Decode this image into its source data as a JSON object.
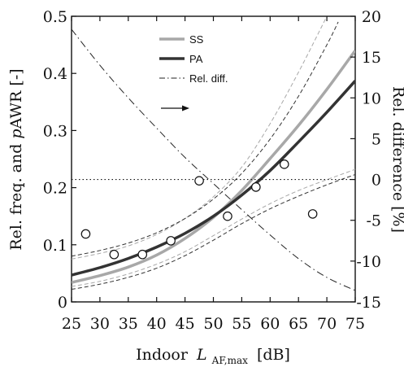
{
  "chart_data": {
    "type": "line",
    "xlabel": "Indoor",
    "xlabel_symbol": "L",
    "xlabel_subscript": "AF,max",
    "xlabel_unit": "[dB]",
    "ylabel_left": "Rel. freq. and pAWR [-]",
    "ylabel_left_parts": [
      "Rel. freq. and ",
      "p",
      "AWR [-]"
    ],
    "ylabel_right": "Rel. difference [%]",
    "xlim": [
      25,
      75
    ],
    "ylim_left": [
      0,
      0.5
    ],
    "ylim_right": [
      -15,
      20
    ],
    "x_ticks": [
      "25",
      "30",
      "35",
      "40",
      "45",
      "50",
      "55",
      "60",
      "65",
      "70",
      "75"
    ],
    "y_ticks_left": [
      "0",
      "0.1",
      "0.2",
      "0.3",
      "0.4",
      "0.5"
    ],
    "y_ticks_right": [
      "-15",
      "-10",
      "-5",
      "0",
      "5",
      "10",
      "15",
      "20"
    ],
    "legend": {
      "placement": "top-center",
      "entries": [
        "SS",
        "PA",
        "Rel. diff."
      ]
    },
    "series": [
      {
        "name": "SS",
        "axis": "left",
        "color": "#a8a8a8",
        "x": [
          25,
          30,
          35,
          40,
          45,
          50,
          55,
          60,
          65,
          70,
          75
        ],
        "values": [
          0.034,
          0.046,
          0.061,
          0.082,
          0.111,
          0.148,
          0.195,
          0.251,
          0.309,
          0.372,
          0.44
        ]
      },
      {
        "name": "SS 95% band (lower)",
        "axis": "left",
        "color": "#a8a8a8",
        "style": "dashed",
        "x": [
          25,
          30,
          35,
          40,
          45,
          50,
          55,
          60,
          65,
          70,
          75
        ],
        "values": [
          0.027,
          0.036,
          0.049,
          0.066,
          0.088,
          0.116,
          0.145,
          0.172,
          0.195,
          0.214,
          0.232
        ]
      },
      {
        "name": "SS 95% band (upper)",
        "axis": "left",
        "color": "#a8a8a8",
        "style": "dashed",
        "x": [
          25,
          30,
          35,
          40,
          45,
          50,
          55,
          60,
          65,
          70
        ],
        "values": [
          0.075,
          0.085,
          0.098,
          0.118,
          0.146,
          0.184,
          0.236,
          0.312,
          0.402,
          0.5
        ]
      },
      {
        "name": "PA",
        "axis": "left",
        "color": "#333333",
        "x": [
          25,
          30,
          35,
          40,
          45,
          50,
          55,
          60,
          65,
          70,
          75
        ],
        "values": [
          0.047,
          0.06,
          0.076,
          0.096,
          0.12,
          0.15,
          0.187,
          0.23,
          0.28,
          0.332,
          0.387
        ]
      },
      {
        "name": "PA 95% band (lower)",
        "axis": "left",
        "color": "#333333",
        "style": "dashed",
        "x": [
          25,
          30,
          35,
          40,
          45,
          50,
          55,
          60,
          65,
          70,
          75
        ],
        "values": [
          0.022,
          0.031,
          0.043,
          0.059,
          0.081,
          0.108,
          0.137,
          0.163,
          0.185,
          0.205,
          0.223
        ]
      },
      {
        "name": "PA 95% band (upper)",
        "axis": "left",
        "color": "#333333",
        "style": "dashed",
        "x": [
          25,
          30,
          35,
          40,
          45,
          50,
          55,
          60,
          65,
          70,
          72
        ],
        "values": [
          0.08,
          0.09,
          0.103,
          0.121,
          0.146,
          0.18,
          0.225,
          0.285,
          0.36,
          0.45,
          0.49
        ]
      },
      {
        "name": "Rel. diff.",
        "axis": "right",
        "color": "#222222",
        "style": "dashdot",
        "x": [
          25,
          30,
          35,
          40,
          45,
          50,
          55,
          60,
          65,
          70,
          75
        ],
        "values": [
          18.4,
          14.0,
          10.0,
          6.3,
          2.7,
          -0.5,
          -3.7,
          -6.8,
          -9.7,
          -12.0,
          -13.6
        ]
      }
    ],
    "points": {
      "marker": "open-circle",
      "x": [
        27.5,
        32.5,
        37.5,
        42.5,
        47.5,
        52.5,
        57.5,
        62.5,
        67.5
      ],
      "y": [
        0.119,
        0.083,
        0.083,
        0.107,
        0.212,
        0.15,
        0.201,
        0.241,
        0.154
      ]
    },
    "reference_line": {
      "axis": "right",
      "value": 0,
      "style": "dotted"
    },
    "annotation": {
      "type": "arrow",
      "direction": "right",
      "meaning": "Rel. diff. refers to right axis"
    }
  }
}
